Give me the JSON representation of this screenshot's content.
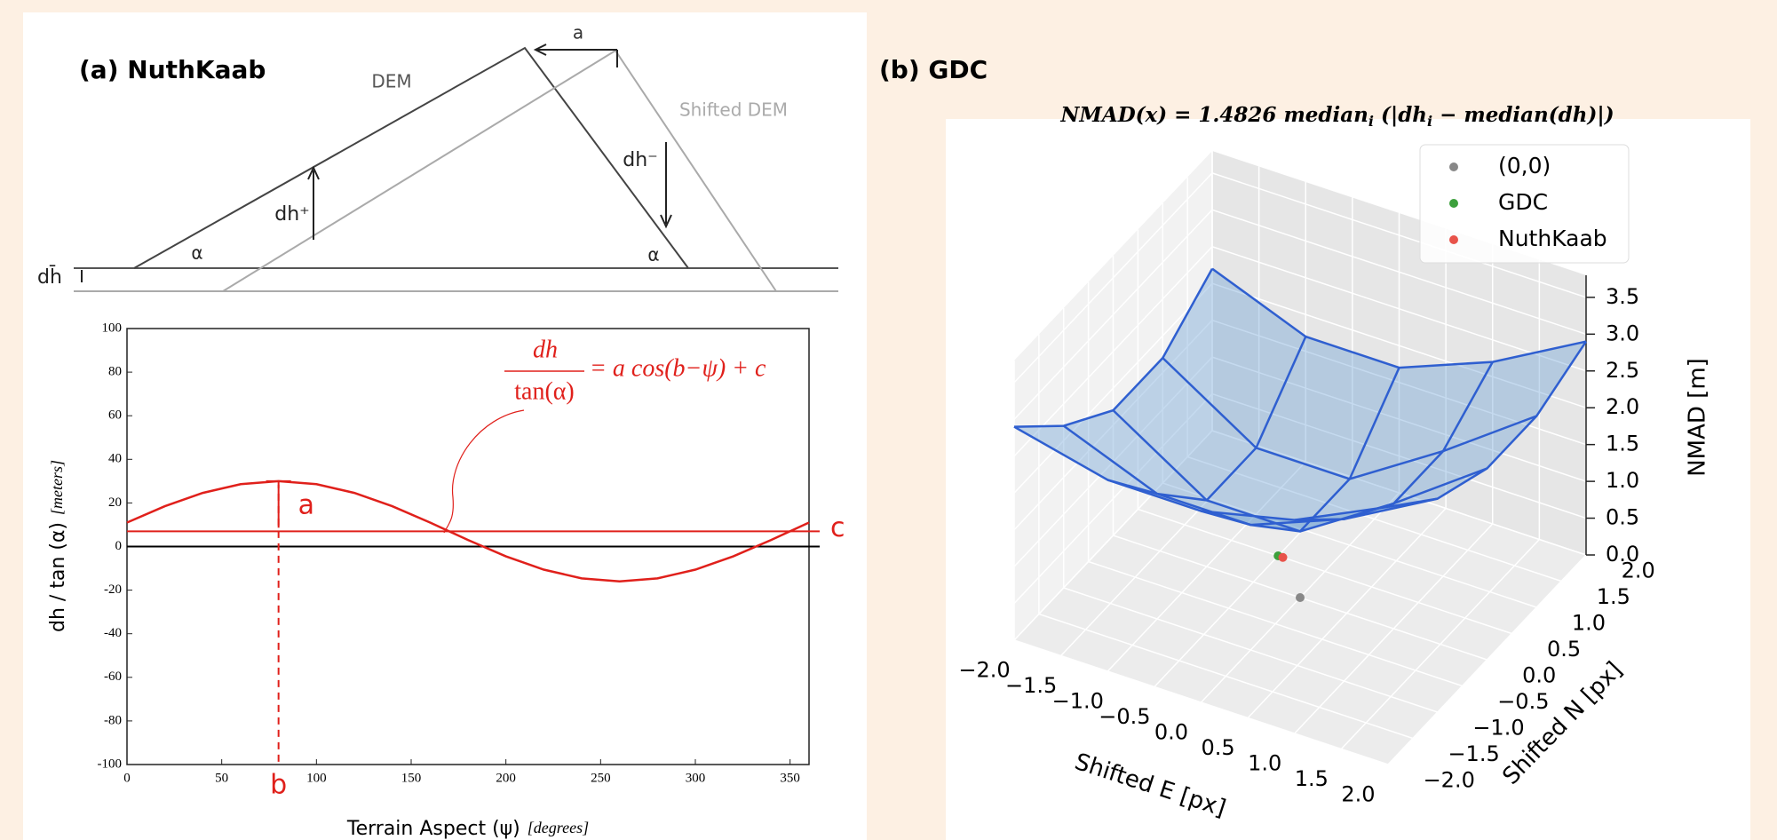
{
  "panels": {
    "a": "(a) NuthKaab",
    "b": "(b) GDC"
  },
  "diagram": {
    "dem": "DEM",
    "shifted_dem": "Shifted DEM",
    "shift": "a",
    "dh_plus": "dh⁺",
    "dh_minus": "dh⁻",
    "slope_left": "α",
    "slope_right": "α",
    "mean_dh": "dh̄"
  },
  "chart_data": [
    {
      "type": "line",
      "xlabel": "Terrain Aspect  (ψ)",
      "xlabel_unit": "[degrees]",
      "ylabel": "dh / tan (α)",
      "ylabel_unit": "[meters]",
      "xlim": [
        0,
        360
      ],
      "ylim": [
        -100,
        100
      ],
      "xticks": [
        0,
        50,
        100,
        150,
        200,
        250,
        300,
        350
      ],
      "yticks": [
        -100,
        -80,
        -60,
        -40,
        -20,
        0,
        20,
        40,
        60,
        80,
        100
      ],
      "x": [
        0,
        20,
        40,
        60,
        80,
        100,
        120,
        140,
        160,
        180,
        200,
        220,
        240,
        260,
        280,
        300,
        320,
        340,
        360
      ],
      "series": [
        {
          "color": "#e0201b",
          "values": [
            11.0,
            18.5,
            24.6,
            28.6,
            30.0,
            28.6,
            24.6,
            18.5,
            11.0,
            3.0,
            -4.5,
            -10.6,
            -14.6,
            -16.0,
            -14.6,
            -10.6,
            -4.5,
            3.0,
            11.0
          ]
        }
      ],
      "hlines": [
        {
          "value": 7,
          "color": "#e0201b"
        },
        {
          "value": 0,
          "color": "#000000"
        }
      ],
      "equation": {
        "numerator": "dh",
        "denominator": "tan(α)",
        "rhs": "= a cos(b−ψ) + c"
      },
      "annotations": {
        "a": "a",
        "b": "b",
        "c": "c"
      }
    },
    {
      "type": "surface3d",
      "title_parts": [
        "NMAD(x) = 1.4826 median",
        "i",
        " (|dh",
        "i",
        " − median(dh)|)"
      ],
      "xlabel": "Shifted E [px]",
      "ylabel": "Shifted N [px]",
      "zlabel": "NMAD [m]",
      "xlim": [
        -2,
        2
      ],
      "ylim": [
        -2,
        2
      ],
      "zlim": [
        0,
        3.8
      ],
      "xticks": [
        {
          "value": -2,
          "label": "−2.0"
        },
        {
          "value": -1.5,
          "label": "−1.5"
        },
        {
          "value": -1,
          "label": "−1.0"
        },
        {
          "value": -0.5,
          "label": "−0.5"
        },
        {
          "value": 0,
          "label": "0.0"
        },
        {
          "value": 0.5,
          "label": "0.5"
        },
        {
          "value": 1,
          "label": "1.0"
        },
        {
          "value": 1.5,
          "label": "1.5"
        },
        {
          "value": 2,
          "label": "2.0"
        }
      ],
      "yticks": [
        {
          "value": -2,
          "label": "−2.0"
        },
        {
          "value": -1.5,
          "label": "−1.5"
        },
        {
          "value": -1,
          "label": "−1.0"
        },
        {
          "value": -0.5,
          "label": "−0.5"
        },
        {
          "value": 0,
          "label": "0.0"
        },
        {
          "value": 0.5,
          "label": "0.5"
        },
        {
          "value": 1,
          "label": "1.0"
        },
        {
          "value": 1.5,
          "label": "1.5"
        },
        {
          "value": 2,
          "label": "2.0"
        }
      ],
      "zticks": [
        {
          "value": 0,
          "label": "0.0"
        },
        {
          "value": 0.5,
          "label": "0.5"
        },
        {
          "value": 1,
          "label": "1.0"
        },
        {
          "value": 1.5,
          "label": "1.5"
        },
        {
          "value": 2,
          "label": "2.0"
        },
        {
          "value": 2.5,
          "label": "2.5"
        },
        {
          "value": 3,
          "label": "3.0"
        },
        {
          "value": 3.5,
          "label": "3.5"
        }
      ],
      "grid": true,
      "surface": {
        "color": "#2f5fd0",
        "x": [
          -2,
          -1,
          0,
          1,
          2
        ],
        "y": [
          -2,
          -1,
          0,
          1,
          2
        ],
        "z": [
          [
            2.9,
            2.6,
            2.6,
            2.9,
            3.5
          ],
          [
            2.2,
            1.7,
            1.7,
            2.2,
            2.9
          ],
          [
            1.7,
            0.9,
            0.9,
            1.7,
            2.6
          ],
          [
            1.7,
            0.9,
            0.9,
            1.7,
            2.6
          ],
          [
            2.2,
            1.7,
            1.7,
            2.2,
            2.9
          ]
        ]
      },
      "legend": "upper right",
      "series": [
        {
          "name": "(0,0)",
          "color": "#888888",
          "x": [
            0
          ],
          "y": [
            0
          ],
          "z": [
            0
          ]
        },
        {
          "name": "GDC",
          "color": "#3ca03c",
          "x": [
            -0.5
          ],
          "y": [
            0.5
          ],
          "z": [
            0
          ]
        },
        {
          "name": "NuthKaab",
          "color": "#e8534a",
          "x": [
            -0.45
          ],
          "y": [
            0.5
          ],
          "z": [
            0
          ]
        }
      ]
    }
  ]
}
